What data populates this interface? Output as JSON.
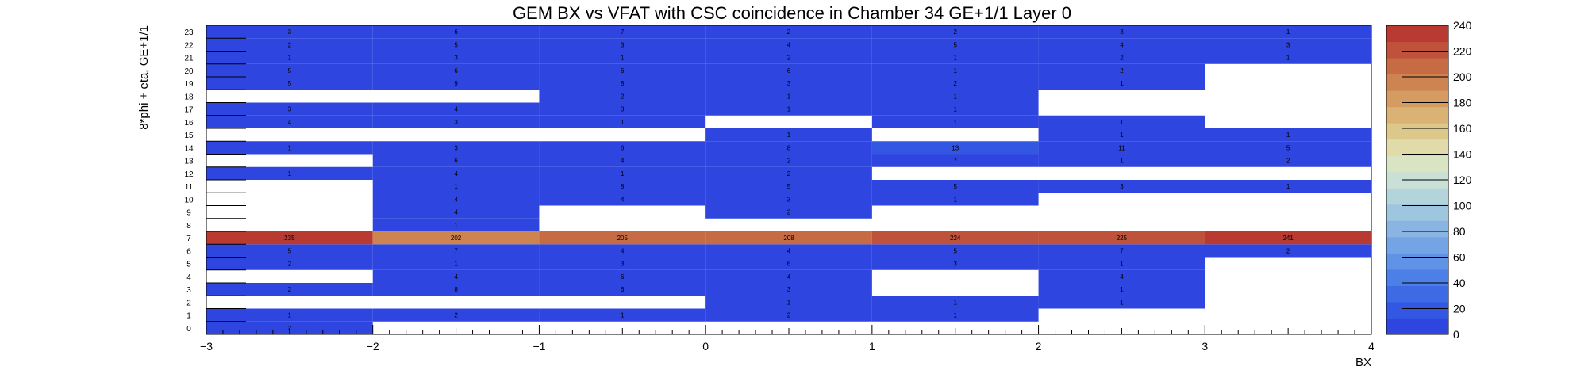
{
  "chart_data": {
    "type": "heatmap",
    "title": "GEM BX vs VFAT with CSC coincidence in Chamber 34 GE+1/1 Layer 0",
    "xlabel": "BX",
    "ylabel": "8*phi + eta, GE+1/1",
    "xlim": [
      -3,
      4
    ],
    "ylim": [
      0,
      24
    ],
    "x_tick_labels": [
      "−3",
      "−2",
      "−1",
      "0",
      "1",
      "2",
      "3",
      "4"
    ],
    "x_bins": [
      -2.5,
      -1.5,
      -0.5,
      0.5,
      1.5,
      2.5,
      3.5
    ],
    "y_bins": [
      0,
      1,
      2,
      3,
      4,
      5,
      6,
      7,
      8,
      9,
      10,
      11,
      12,
      13,
      14,
      15,
      16,
      17,
      18,
      19,
      20,
      21,
      22,
      23
    ],
    "zlim": [
      0,
      240
    ],
    "colorbar_ticks": [
      0,
      20,
      40,
      60,
      80,
      100,
      120,
      140,
      160,
      180,
      200,
      220,
      240
    ],
    "cells": [
      {
        "x": -2.5,
        "y": 0,
        "v": 2
      },
      {
        "x": -2.5,
        "y": 1,
        "v": 1
      },
      {
        "x": -1.5,
        "y": 1,
        "v": 2
      },
      {
        "x": -0.5,
        "y": 1,
        "v": 1
      },
      {
        "x": 0.5,
        "y": 1,
        "v": 2
      },
      {
        "x": 1.5,
        "y": 1,
        "v": 1
      },
      {
        "x": 0.5,
        "y": 2,
        "v": 1
      },
      {
        "x": 1.5,
        "y": 2,
        "v": 1
      },
      {
        "x": 2.5,
        "y": 2,
        "v": 1
      },
      {
        "x": -2.5,
        "y": 3,
        "v": 2
      },
      {
        "x": -1.5,
        "y": 3,
        "v": 8
      },
      {
        "x": -0.5,
        "y": 3,
        "v": 6
      },
      {
        "x": 0.5,
        "y": 3,
        "v": 3
      },
      {
        "x": 2.5,
        "y": 3,
        "v": 1
      },
      {
        "x": -1.5,
        "y": 4,
        "v": 4
      },
      {
        "x": -0.5,
        "y": 4,
        "v": 6
      },
      {
        "x": 0.5,
        "y": 4,
        "v": 4
      },
      {
        "x": 2.5,
        "y": 4,
        "v": 4
      },
      {
        "x": -2.5,
        "y": 5,
        "v": 2
      },
      {
        "x": -1.5,
        "y": 5,
        "v": 1
      },
      {
        "x": -0.5,
        "y": 5,
        "v": 3
      },
      {
        "x": 0.5,
        "y": 5,
        "v": 6
      },
      {
        "x": 1.5,
        "y": 5,
        "v": 3
      },
      {
        "x": 2.5,
        "y": 5,
        "v": 1
      },
      {
        "x": -2.5,
        "y": 6,
        "v": 5
      },
      {
        "x": -1.5,
        "y": 6,
        "v": 7
      },
      {
        "x": -0.5,
        "y": 6,
        "v": 4
      },
      {
        "x": 0.5,
        "y": 6,
        "v": 4
      },
      {
        "x": 1.5,
        "y": 6,
        "v": 5
      },
      {
        "x": 2.5,
        "y": 6,
        "v": 7
      },
      {
        "x": 3.5,
        "y": 6,
        "v": 2
      },
      {
        "x": -2.5,
        "y": 7,
        "v": 235
      },
      {
        "x": -1.5,
        "y": 7,
        "v": 202
      },
      {
        "x": -0.5,
        "y": 7,
        "v": 205
      },
      {
        "x": 0.5,
        "y": 7,
        "v": 208
      },
      {
        "x": 1.5,
        "y": 7,
        "v": 224
      },
      {
        "x": 2.5,
        "y": 7,
        "v": 225
      },
      {
        "x": 3.5,
        "y": 7,
        "v": 241
      },
      {
        "x": -1.5,
        "y": 8,
        "v": 1
      },
      {
        "x": -1.5,
        "y": 9,
        "v": 4
      },
      {
        "x": 0.5,
        "y": 9,
        "v": 2
      },
      {
        "x": -1.5,
        "y": 10,
        "v": 4
      },
      {
        "x": -0.5,
        "y": 10,
        "v": 4
      },
      {
        "x": 0.5,
        "y": 10,
        "v": 3
      },
      {
        "x": 1.5,
        "y": 10,
        "v": 1
      },
      {
        "x": -1.5,
        "y": 11,
        "v": 1
      },
      {
        "x": -0.5,
        "y": 11,
        "v": 8
      },
      {
        "x": 0.5,
        "y": 11,
        "v": 5
      },
      {
        "x": 1.5,
        "y": 11,
        "v": 5
      },
      {
        "x": 2.5,
        "y": 11,
        "v": 3
      },
      {
        "x": 3.5,
        "y": 11,
        "v": 1
      },
      {
        "x": -2.5,
        "y": 12,
        "v": 1
      },
      {
        "x": -1.5,
        "y": 12,
        "v": 4
      },
      {
        "x": -0.5,
        "y": 12,
        "v": 1
      },
      {
        "x": 0.5,
        "y": 12,
        "v": 2
      },
      {
        "x": -1.5,
        "y": 13,
        "v": 6
      },
      {
        "x": -0.5,
        "y": 13,
        "v": 4
      },
      {
        "x": 0.5,
        "y": 13,
        "v": 2
      },
      {
        "x": 1.5,
        "y": 13,
        "v": 7
      },
      {
        "x": 2.5,
        "y": 13,
        "v": 1
      },
      {
        "x": 3.5,
        "y": 13,
        "v": 2
      },
      {
        "x": -2.5,
        "y": 14,
        "v": 1
      },
      {
        "x": -1.5,
        "y": 14,
        "v": 3
      },
      {
        "x": -0.5,
        "y": 14,
        "v": 6
      },
      {
        "x": 0.5,
        "y": 14,
        "v": 8
      },
      {
        "x": 1.5,
        "y": 14,
        "v": 13
      },
      {
        "x": 2.5,
        "y": 14,
        "v": 11
      },
      {
        "x": 3.5,
        "y": 14,
        "v": 5
      },
      {
        "x": 0.5,
        "y": 15,
        "v": 1
      },
      {
        "x": 2.5,
        "y": 15,
        "v": 1
      },
      {
        "x": 3.5,
        "y": 15,
        "v": 1
      },
      {
        "x": -2.5,
        "y": 16,
        "v": 4
      },
      {
        "x": -1.5,
        "y": 16,
        "v": 3
      },
      {
        "x": -0.5,
        "y": 16,
        "v": 1
      },
      {
        "x": 1.5,
        "y": 16,
        "v": 1
      },
      {
        "x": 2.5,
        "y": 16,
        "v": 1
      },
      {
        "x": -2.5,
        "y": 17,
        "v": 3
      },
      {
        "x": -1.5,
        "y": 17,
        "v": 4
      },
      {
        "x": -0.5,
        "y": 17,
        "v": 3
      },
      {
        "x": 0.5,
        "y": 17,
        "v": 1
      },
      {
        "x": 1.5,
        "y": 17,
        "v": 1
      },
      {
        "x": -0.5,
        "y": 18,
        "v": 2
      },
      {
        "x": 0.5,
        "y": 18,
        "v": 1
      },
      {
        "x": 1.5,
        "y": 18,
        "v": 1
      },
      {
        "x": -2.5,
        "y": 19,
        "v": 5
      },
      {
        "x": -1.5,
        "y": 19,
        "v": 9
      },
      {
        "x": -0.5,
        "y": 19,
        "v": 8
      },
      {
        "x": 0.5,
        "y": 19,
        "v": 3
      },
      {
        "x": 1.5,
        "y": 19,
        "v": 2
      },
      {
        "x": 2.5,
        "y": 19,
        "v": 1
      },
      {
        "x": -2.5,
        "y": 20,
        "v": 5
      },
      {
        "x": -1.5,
        "y": 20,
        "v": 6
      },
      {
        "x": -0.5,
        "y": 20,
        "v": 6
      },
      {
        "x": 0.5,
        "y": 20,
        "v": 6
      },
      {
        "x": 1.5,
        "y": 20,
        "v": 1
      },
      {
        "x": 2.5,
        "y": 20,
        "v": 2
      },
      {
        "x": -2.5,
        "y": 21,
        "v": 1
      },
      {
        "x": -1.5,
        "y": 21,
        "v": 3
      },
      {
        "x": -0.5,
        "y": 21,
        "v": 1
      },
      {
        "x": 0.5,
        "y": 21,
        "v": 2
      },
      {
        "x": 1.5,
        "y": 21,
        "v": 1
      },
      {
        "x": 2.5,
        "y": 21,
        "v": 2
      },
      {
        "x": 3.5,
        "y": 21,
        "v": 1
      },
      {
        "x": -2.5,
        "y": 22,
        "v": 2
      },
      {
        "x": -1.5,
        "y": 22,
        "v": 5
      },
      {
        "x": -0.5,
        "y": 22,
        "v": 3
      },
      {
        "x": 0.5,
        "y": 22,
        "v": 4
      },
      {
        "x": 1.5,
        "y": 22,
        "v": 5
      },
      {
        "x": 2.5,
        "y": 22,
        "v": 4
      },
      {
        "x": 3.5,
        "y": 22,
        "v": 3
      },
      {
        "x": -2.5,
        "y": 23,
        "v": 3
      },
      {
        "x": -1.5,
        "y": 23,
        "v": 6
      },
      {
        "x": -0.5,
        "y": 23,
        "v": 7
      },
      {
        "x": 0.5,
        "y": 23,
        "v": 2
      },
      {
        "x": 1.5,
        "y": 23,
        "v": 2
      },
      {
        "x": 2.5,
        "y": 23,
        "v": 3
      },
      {
        "x": 3.5,
        "y": 23,
        "v": 1
      }
    ],
    "palette": [
      "#2f45e0",
      "#3356e3",
      "#3d6ae5",
      "#4d80e6",
      "#6093e6",
      "#74a4e5",
      "#8ab5e2",
      "#9fc6df",
      "#b4d4dc",
      "#c9e0d6",
      "#d9e4c3",
      "#e0dba8",
      "#ddc88b",
      "#dab274",
      "#d59b61",
      "#ce8451",
      "#c66b44",
      "#bf523a",
      "#b93a30"
    ]
  }
}
